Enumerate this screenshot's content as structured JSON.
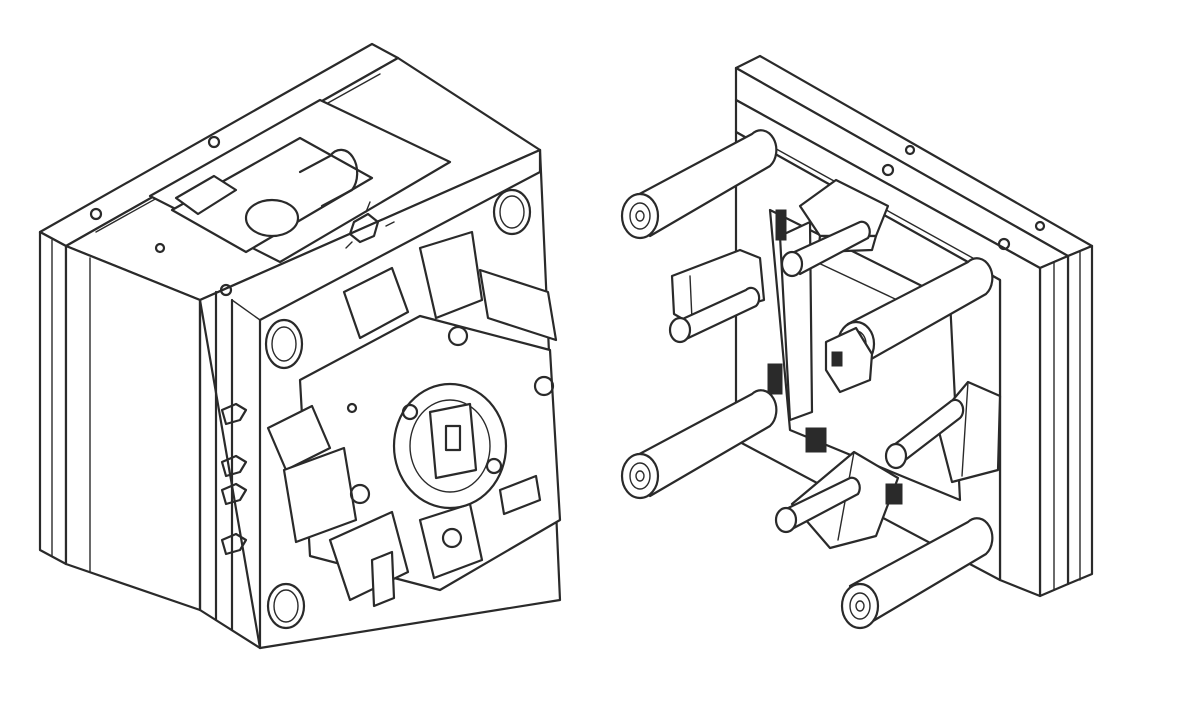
{
  "figure": {
    "line_color": "#2a2a2a",
    "background": "#ffffff",
    "parts": [
      "fixed-mold-half",
      "moving-mold-half"
    ]
  }
}
